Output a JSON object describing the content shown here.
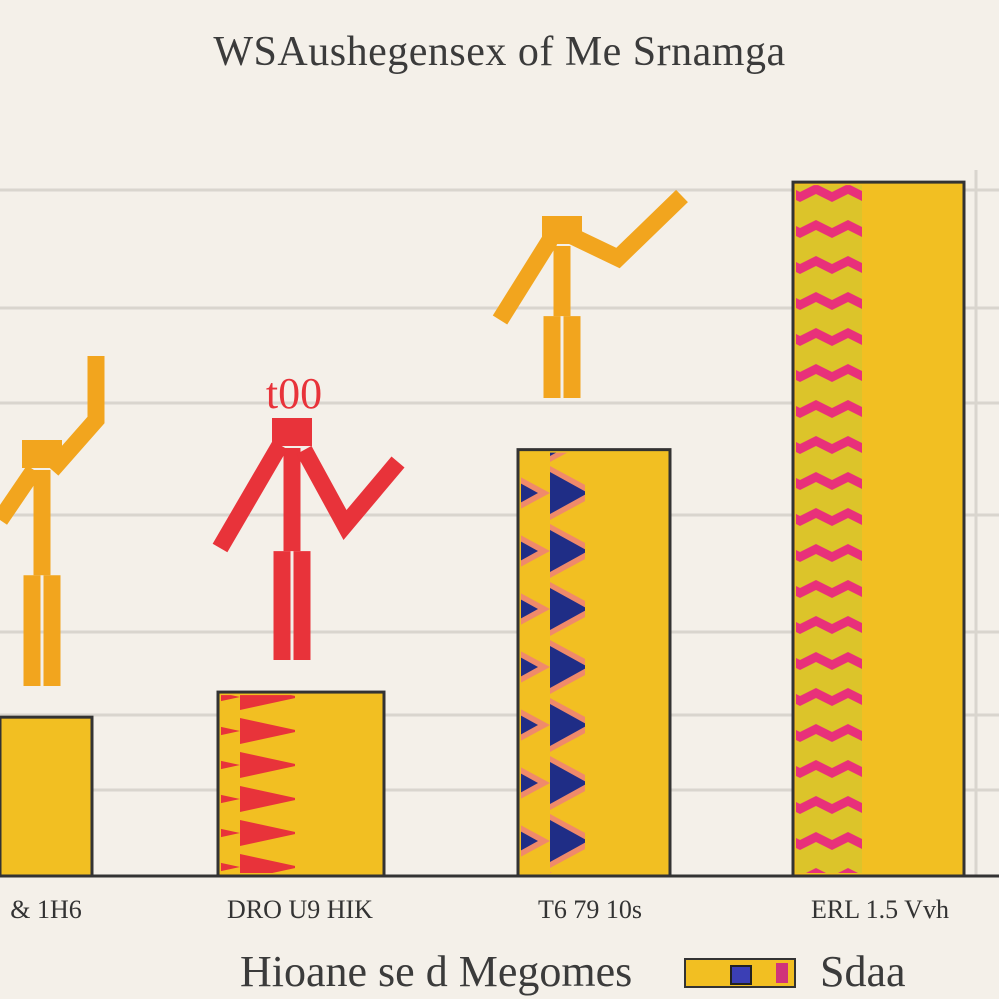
{
  "chart_data": {
    "type": "bar",
    "title": "WSAushegensex of Me Srnamga",
    "xlabel": "Hioane se d Megomes",
    "categories": [
      "& 1H6",
      "DRO U9 HIK",
      "T6 79 10s",
      "ERL 1.5 Vvh"
    ],
    "series": [
      {
        "name": "Sdaa",
        "values": [
          19,
          22,
          51,
          83
        ]
      }
    ],
    "annotations": [
      "t00"
    ],
    "ylim": [
      0,
      100
    ],
    "grid": true,
    "legend_position": "bottom-right",
    "colors": {
      "bar": "#f2bf22",
      "pattern_pink": "#e8317a",
      "pattern_red": "#e8333a",
      "pattern_navy": "#1f2d86",
      "figure_orange": "#f2a51e",
      "figure_red": "#e8333a",
      "gridline": "#d9d5ce",
      "background": "#f4f0e9"
    }
  }
}
